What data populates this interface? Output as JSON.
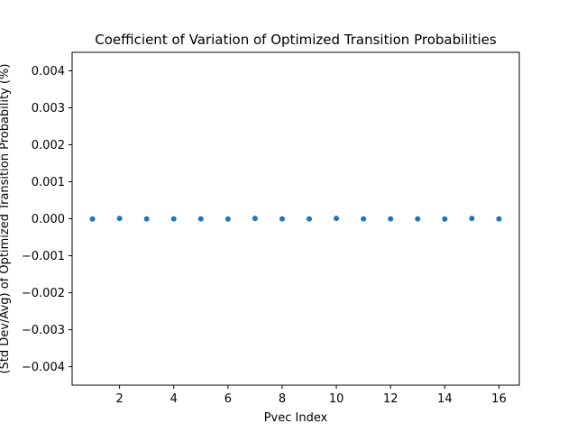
{
  "chart_data": {
    "type": "scatter",
    "title": "Coefficient of Variation of Optimized Transition Probabilities",
    "xlabel": "Pvec Index",
    "ylabel": "(Std Dev/Avg) of Optimized Transition Probability (%)",
    "xlim": [
      0.25,
      16.75
    ],
    "ylim": [
      -0.0045,
      0.0045
    ],
    "x_ticks": [
      2,
      4,
      6,
      8,
      10,
      12,
      14,
      16
    ],
    "x_tick_labels": [
      "2",
      "4",
      "6",
      "8",
      "10",
      "12",
      "14",
      "16"
    ],
    "y_ticks": [
      -0.004,
      -0.003,
      -0.002,
      -0.001,
      0.0,
      0.001,
      0.002,
      0.003,
      0.004
    ],
    "y_tick_labels": [
      "−0.004",
      "−0.003",
      "−0.002",
      "−0.001",
      "0.000",
      "0.001",
      "0.002",
      "0.003",
      "0.004"
    ],
    "grid": false,
    "series": [
      {
        "color": "#1f77b4",
        "x": [
          1,
          2,
          3,
          4,
          5,
          6,
          7,
          8,
          9,
          10,
          11,
          12,
          13,
          14,
          15,
          16
        ],
        "y": [
          -5e-06,
          8e-06,
          -4e-06,
          -3e-06,
          -4e-06,
          -5e-06,
          9e-06,
          -4e-06,
          -3e-06,
          8e-06,
          -4e-06,
          -3e-06,
          -4e-06,
          -5e-06,
          8e-06,
          -4e-06
        ]
      }
    ]
  }
}
